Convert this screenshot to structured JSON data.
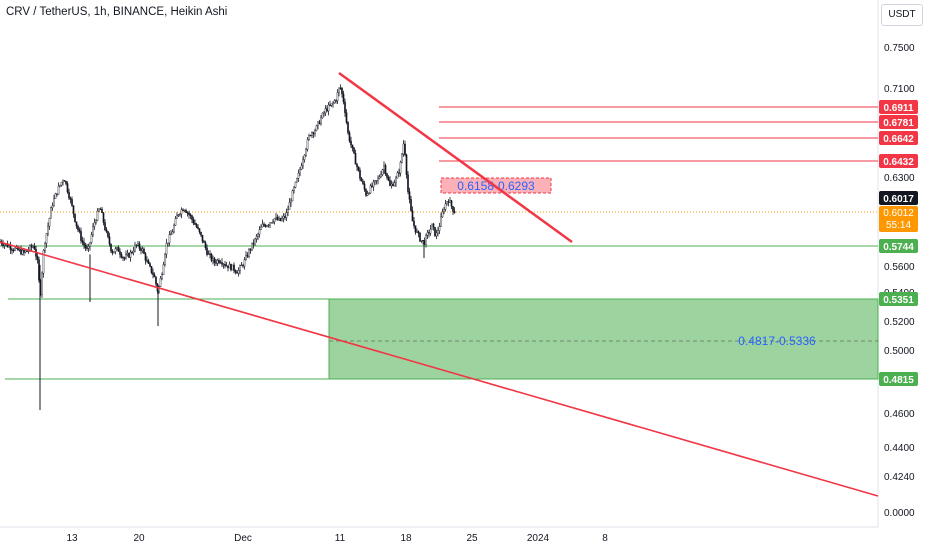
{
  "chart_data": {
    "type": "candlestick",
    "title": "CRV / TetherUS, 1h, BINANCE, Heikin Ashi",
    "currency_label": "USDT",
    "y_scale": "log",
    "y_ticks": [
      "0.7500",
      "0.7100",
      "0.6300",
      "0.5600",
      "0.5400",
      "0.5200",
      "0.5000",
      "0.4600",
      "0.4400",
      "0.4240",
      "0.0000"
    ],
    "x_ticks": [
      "13",
      "20",
      "Dec",
      "11",
      "18",
      "25",
      "2024",
      "8"
    ],
    "horizontal_levels": [
      {
        "label": "0.6911",
        "color": "#f23645"
      },
      {
        "label": "0.6781",
        "color": "#f23645"
      },
      {
        "label": "0.6642",
        "color": "#f23645"
      },
      {
        "label": "0.6432",
        "color": "#f23645"
      },
      {
        "label": "0.5744",
        "color": "#4caf50"
      },
      {
        "label": "0.5351",
        "color": "#4caf50"
      },
      {
        "label": "0.4815",
        "color": "#4caf50"
      }
    ],
    "last_price": {
      "value": "0.6017",
      "color": "#131722"
    },
    "current_close": {
      "value": "0.6012",
      "countdown": "55:14",
      "color": "#ff9800"
    },
    "annotations": {
      "upper_range": "0.6158-0.6293",
      "lower_zone": "0.4817-0.5336"
    },
    "price_path": [
      [
        0,
        0.578
      ],
      [
        12,
        0.573
      ],
      [
        24,
        0.569
      ],
      [
        34,
        0.575
      ],
      [
        38,
        0.56
      ],
      [
        40,
        0.535
      ],
      [
        44,
        0.575
      ],
      [
        48,
        0.59
      ],
      [
        52,
        0.607
      ],
      [
        58,
        0.62
      ],
      [
        64,
        0.63
      ],
      [
        70,
        0.612
      ],
      [
        76,
        0.592
      ],
      [
        82,
        0.578
      ],
      [
        88,
        0.57
      ],
      [
        94,
        0.592
      ],
      [
        100,
        0.605
      ],
      [
        106,
        0.585
      ],
      [
        112,
        0.57
      ],
      [
        118,
        0.572
      ],
      [
        124,
        0.565
      ],
      [
        130,
        0.568
      ],
      [
        136,
        0.575
      ],
      [
        142,
        0.572
      ],
      [
        148,
        0.56
      ],
      [
        154,
        0.552
      ],
      [
        158,
        0.54
      ],
      [
        162,
        0.555
      ],
      [
        166,
        0.575
      ],
      [
        172,
        0.585
      ],
      [
        178,
        0.6
      ],
      [
        184,
        0.605
      ],
      [
        190,
        0.598
      ],
      [
        196,
        0.59
      ],
      [
        202,
        0.58
      ],
      [
        208,
        0.568
      ],
      [
        214,
        0.562
      ],
      [
        220,
        0.564
      ],
      [
        226,
        0.56
      ],
      [
        232,
        0.558
      ],
      [
        238,
        0.555
      ],
      [
        244,
        0.562
      ],
      [
        250,
        0.572
      ],
      [
        256,
        0.58
      ],
      [
        262,
        0.59
      ],
      [
        268,
        0.592
      ],
      [
        274,
        0.596
      ],
      [
        280,
        0.594
      ],
      [
        286,
        0.598
      ],
      [
        292,
        0.615
      ],
      [
        298,
        0.63
      ],
      [
        304,
        0.65
      ],
      [
        310,
        0.668
      ],
      [
        316,
        0.672
      ],
      [
        320,
        0.68
      ],
      [
        326,
        0.69
      ],
      [
        332,
        0.694
      ],
      [
        336,
        0.7
      ],
      [
        340,
        0.712
      ],
      [
        344,
        0.696
      ],
      [
        348,
        0.668
      ],
      [
        354,
        0.648
      ],
      [
        360,
        0.63
      ],
      [
        366,
        0.616
      ],
      [
        372,
        0.622
      ],
      [
        378,
        0.628
      ],
      [
        384,
        0.64
      ],
      [
        390,
        0.622
      ],
      [
        396,
        0.628
      ],
      [
        400,
        0.638
      ],
      [
        404,
        0.662
      ],
      [
        408,
        0.618
      ],
      [
        412,
        0.595
      ],
      [
        416,
        0.586
      ],
      [
        420,
        0.58
      ],
      [
        424,
        0.577
      ],
      [
        428,
        0.584
      ],
      [
        432,
        0.59
      ],
      [
        436,
        0.582
      ],
      [
        440,
        0.592
      ],
      [
        444,
        0.605
      ],
      [
        448,
        0.612
      ],
      [
        452,
        0.605
      ],
      [
        455,
        0.601
      ]
    ]
  }
}
